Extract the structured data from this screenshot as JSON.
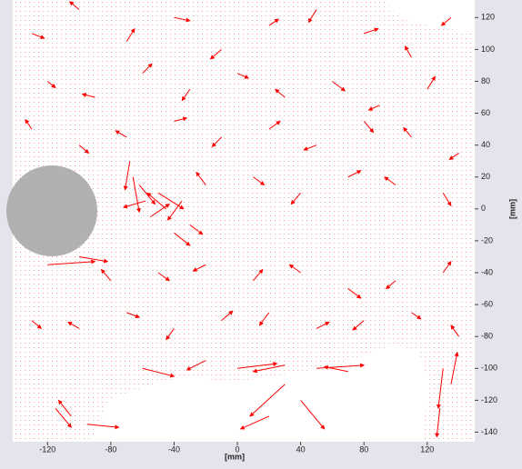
{
  "chart_data": {
    "type": "quiver",
    "color": "#ff0000",
    "xlabel": "[mm]",
    "ylabel": "[mm]",
    "xlim": [
      -142,
      150
    ],
    "ylim": [
      -146,
      131
    ],
    "xticks": [
      -120,
      -80,
      -40,
      0,
      40,
      80,
      120
    ],
    "yticks": [
      120,
      100,
      80,
      60,
      40,
      20,
      0,
      -20,
      -40,
      -60,
      -80,
      -100,
      -120,
      -140
    ],
    "x": [
      -130,
      -100,
      -70,
      -40,
      -10,
      20,
      50,
      80,
      110,
      135,
      -120,
      -90,
      -60,
      -30,
      0,
      30,
      60,
      90,
      120,
      -130,
      -100,
      -70,
      -40,
      -10,
      20,
      50,
      80,
      110,
      140,
      -68,
      -66,
      -62,
      -58,
      -55,
      -50,
      -45,
      -40,
      -35,
      -30,
      -20,
      10,
      40,
      70,
      100,
      130,
      -120,
      -100,
      -80,
      -50,
      -20,
      10,
      40,
      70,
      100,
      130,
      -130,
      -100,
      -70,
      -40,
      -10,
      20,
      50,
      80,
      110,
      140,
      0,
      30,
      50,
      70,
      -60,
      -20,
      130,
      135,
      128,
      -115,
      -105,
      -95,
      20,
      30,
      40
    ],
    "y": [
      110,
      125,
      105,
      120,
      100,
      115,
      125,
      110,
      95,
      120,
      80,
      70,
      85,
      75,
      85,
      70,
      80,
      65,
      75,
      50,
      40,
      45,
      55,
      45,
      50,
      40,
      55,
      45,
      35,
      30,
      20,
      15,
      5,
      -5,
      10,
      0,
      -15,
      5,
      -10,
      15,
      20,
      10,
      20,
      15,
      10,
      -35,
      -30,
      -45,
      -40,
      -35,
      -45,
      -40,
      -50,
      -45,
      -40,
      -70,
      -75,
      -65,
      -75,
      -70,
      -65,
      -75,
      -70,
      -65,
      -80,
      -100,
      -98,
      -100,
      -102,
      -100,
      -95,
      -100,
      -110,
      -125,
      -125,
      -130,
      -135,
      -130,
      -110,
      -120
    ],
    "u": [
      8,
      -6,
      5,
      10,
      -7,
      6,
      -5,
      9,
      -4,
      -6,
      5,
      -8,
      6,
      -5,
      7,
      -6,
      8,
      -7,
      5,
      -4,
      6,
      -7,
      8,
      -6,
      7,
      -8,
      6,
      -5,
      -6,
      -3,
      4,
      10,
      -14,
      12,
      16,
      -12,
      10,
      -9,
      8,
      -6,
      7,
      -6,
      8,
      -7,
      5,
      30,
      18,
      -6,
      7,
      -8,
      6,
      -7,
      8,
      -6,
      5,
      6,
      -7,
      8,
      -5,
      7,
      -6,
      8,
      -7,
      6,
      -5,
      25,
      -20,
      30,
      -15,
      20,
      -12,
      -3,
      4,
      -2,
      10,
      -8,
      20,
      -18,
      -22,
      15
    ],
    "v": [
      -3,
      5,
      8,
      -2,
      -6,
      4,
      -8,
      3,
      7,
      -5,
      -4,
      2,
      6,
      -7,
      -3,
      5,
      -6,
      -3,
      8,
      6,
      -5,
      4,
      2,
      -6,
      5,
      -3,
      -7,
      6,
      -4,
      -18,
      -22,
      -12,
      -4,
      8,
      -10,
      10,
      -8,
      -12,
      -6,
      8,
      -5,
      -7,
      4,
      5,
      -8,
      2,
      -3,
      7,
      -5,
      -4,
      7,
      5,
      -6,
      -5,
      7,
      -5,
      4,
      -3,
      -7,
      6,
      -8,
      4,
      -6,
      -4,
      7,
      3,
      -4,
      2,
      3,
      -5,
      -6,
      -25,
      20,
      -18,
      -12,
      10,
      -2,
      -8,
      -20,
      -18
    ]
  }
}
